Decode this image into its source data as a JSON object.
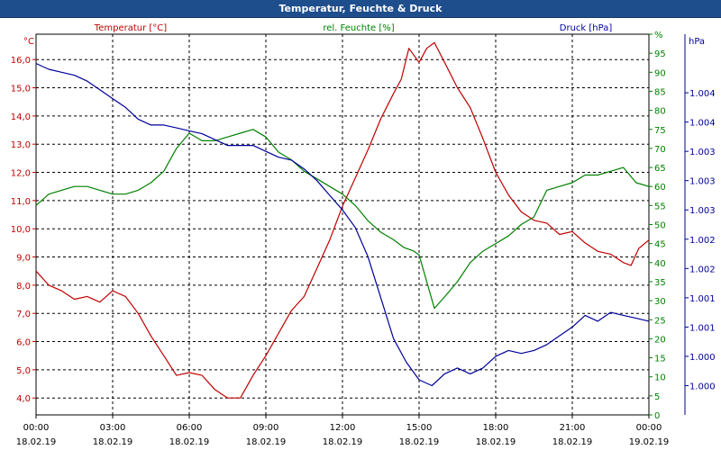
{
  "window": {
    "title": "Temperatur, Feuchte & Druck"
  },
  "colors": {
    "temperature": "#c00000",
    "humidity": "#008000",
    "pressure": "#00009a",
    "titlebar": "#1f4e8c",
    "grid": "#000000"
  },
  "chart_data": {
    "type": "line",
    "title": "Temperatur, Feuchte & Druck",
    "grid": true,
    "legend_placement": "top",
    "x": {
      "range": [
        "18.02.19 00:00",
        "19.02.19 00:00"
      ],
      "tick_hours": [
        0,
        3,
        6,
        9,
        12,
        15,
        18,
        21,
        24
      ],
      "tick_times": [
        "00:00",
        "03:00",
        "06:00",
        "09:00",
        "12:00",
        "15:00",
        "18:00",
        "21:00",
        "00:00"
      ],
      "tick_dates": [
        "18.02.19",
        "18.02.19",
        "18.02.19",
        "18.02.19",
        "18.02.19",
        "18.02.19",
        "18.02.19",
        "18.02.19",
        "19.02.19"
      ]
    },
    "axes": {
      "left": {
        "unit": "°C",
        "range": [
          3.4,
          16.9
        ],
        "ticks": [
          "4,0",
          "5,0",
          "6,0",
          "7,0",
          "8,0",
          "9,0",
          "10,0",
          "11,0",
          "12,0",
          "13,0",
          "14,0",
          "15,0",
          "16,0"
        ],
        "tick_values": [
          4,
          5,
          6,
          7,
          8,
          9,
          10,
          11,
          12,
          13,
          14,
          15,
          16
        ]
      },
      "right1": {
        "unit": "%",
        "range": [
          0,
          100
        ],
        "ticks": [
          "0",
          "5",
          "10",
          "15",
          "20",
          "25",
          "30",
          "35",
          "40",
          "45",
          "50",
          "55",
          "60",
          "65",
          "70",
          "75",
          "80",
          "85",
          "90",
          "95",
          "%"
        ],
        "tick_values": [
          0,
          5,
          10,
          15,
          20,
          25,
          30,
          35,
          40,
          45,
          50,
          55,
          60,
          65,
          70,
          75,
          80,
          85,
          90,
          95,
          100
        ]
      },
      "right2": {
        "unit": "hPa",
        "range": [
          998.5,
          1005.0
        ],
        "ticks": [
          "1.000",
          "1.000",
          "1.001",
          "1.001",
          "1.002",
          "1.002",
          "1.003",
          "1.003",
          "1.003",
          "1.004",
          "1.004"
        ],
        "tick_values": [
          999.0,
          999.5,
          1000.0,
          1000.5,
          1001.0,
          1001.5,
          1002.0,
          1002.5,
          1003.0,
          1003.5,
          1004.0
        ]
      }
    },
    "series": [
      {
        "name": "Temperatur [°C]",
        "axis": "left",
        "x": [
          0,
          0.5,
          1,
          1.5,
          2,
          2.5,
          3,
          3.5,
          4,
          4.5,
          5,
          5.5,
          6,
          6.5,
          7,
          7.5,
          8,
          8.5,
          9,
          9.5,
          10,
          10.5,
          11,
          11.5,
          12,
          12.5,
          13,
          13.5,
          14,
          14.3,
          14.6,
          15,
          15.3,
          15.6,
          16,
          16.5,
          17,
          17.5,
          18,
          18.5,
          19,
          19.5,
          20,
          20.5,
          21,
          21.5,
          22,
          22.5,
          23,
          23.3,
          23.6,
          24
        ],
        "values": [
          8.5,
          8.0,
          7.8,
          7.5,
          7.6,
          7.4,
          7.8,
          7.6,
          7.0,
          6.2,
          5.5,
          4.8,
          4.9,
          4.8,
          4.3,
          4.0,
          4.0,
          4.8,
          5.5,
          6.3,
          7.1,
          7.6,
          8.6,
          9.6,
          10.8,
          11.8,
          12.8,
          13.9,
          14.8,
          15.3,
          16.4,
          15.9,
          16.4,
          16.6,
          15.9,
          15.0,
          14.3,
          13.2,
          12.0,
          11.2,
          10.6,
          10.3,
          10.2,
          9.8,
          9.9,
          9.5,
          9.2,
          9.1,
          8.8,
          8.7,
          9.3,
          9.6
        ]
      },
      {
        "name": "rel. Feuchte [%]",
        "axis": "right1",
        "x": [
          0,
          0.5,
          1,
          1.5,
          2,
          2.5,
          3,
          3.5,
          4,
          4.5,
          5,
          5.5,
          6,
          6.5,
          7,
          7.5,
          8,
          8.5,
          9,
          9.5,
          10,
          10.5,
          11,
          11.5,
          12,
          12.5,
          13,
          13.5,
          14,
          14.4,
          14.8,
          15.0,
          15.3,
          15.6,
          16,
          16.5,
          17,
          17.5,
          18,
          18.5,
          19,
          19.5,
          20,
          20.5,
          21,
          21.5,
          22,
          22.5,
          23,
          23.5,
          24
        ],
        "values": [
          55,
          58,
          59,
          60,
          60,
          59,
          58,
          58,
          59,
          61,
          64,
          70,
          74,
          72,
          72,
          73,
          74,
          75,
          73,
          69,
          67,
          64,
          62,
          60,
          58,
          55,
          51,
          48,
          46,
          44,
          43,
          42,
          35,
          28,
          31,
          35,
          40,
          43,
          45,
          47,
          50,
          52,
          59,
          60,
          61,
          63,
          63,
          64,
          65,
          61,
          60
        ]
      },
      {
        "name": "Druck [hPa]",
        "axis": "right2",
        "x": [
          0,
          0.5,
          1,
          1.5,
          2,
          2.5,
          3,
          3.5,
          4,
          4.5,
          5,
          5.5,
          6,
          6.5,
          7,
          7.5,
          8,
          8.5,
          9,
          9.5,
          10,
          10.5,
          11,
          11.5,
          12,
          12.5,
          13,
          13.5,
          14,
          14.5,
          15,
          15.5,
          16,
          16.5,
          17,
          17.5,
          18,
          18.5,
          19,
          19.5,
          20,
          20.5,
          21,
          21.5,
          22,
          22.5,
          23,
          23.5,
          24
        ],
        "values": [
          1004.5,
          1004.4,
          1004.35,
          1004.3,
          1004.2,
          1004.05,
          1003.9,
          1003.75,
          1003.55,
          1003.45,
          1003.45,
          1003.4,
          1003.35,
          1003.3,
          1003.2,
          1003.1,
          1003.1,
          1003.1,
          1003.0,
          1002.9,
          1002.85,
          1002.7,
          1002.5,
          1002.25,
          1002.0,
          1001.7,
          1001.2,
          1000.5,
          999.8,
          999.4,
          999.1,
          999.0,
          999.2,
          999.3,
          999.2,
          999.3,
          999.5,
          999.6,
          999.55,
          999.6,
          999.7,
          999.85,
          1000.0,
          1000.2,
          1000.1,
          1000.25,
          1000.2,
          1000.15,
          1000.1
        ]
      }
    ]
  }
}
